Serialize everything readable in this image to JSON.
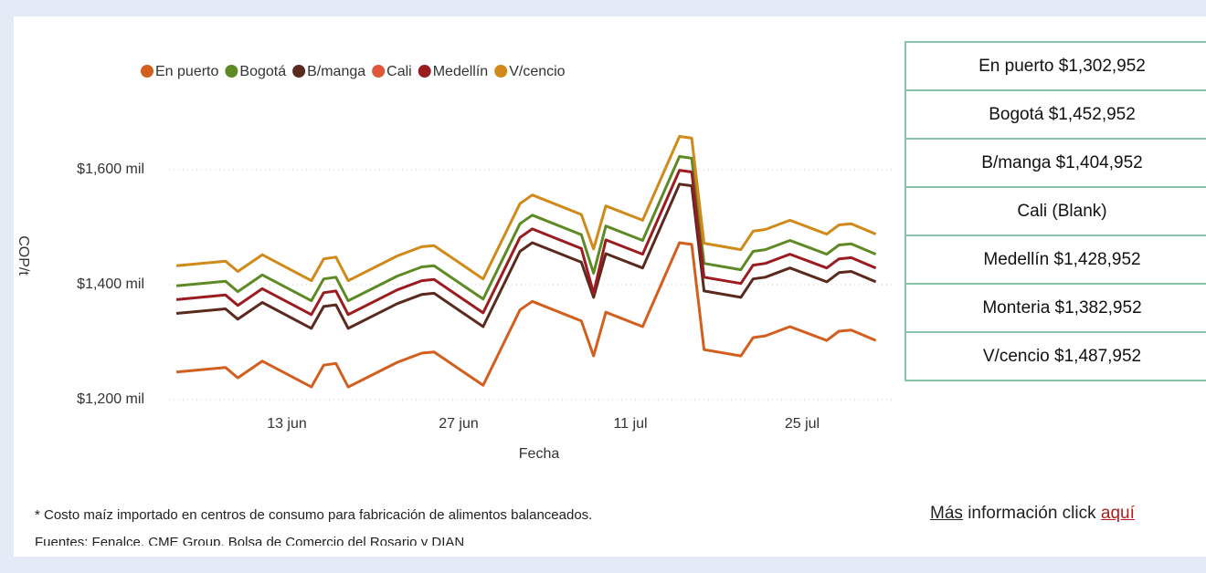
{
  "chart_data": {
    "type": "line",
    "x_label": "Fecha",
    "y_label": "COP/t",
    "x": [
      4,
      8,
      9,
      11,
      15,
      16,
      17,
      18,
      22,
      24,
      25,
      29,
      32,
      33,
      37,
      38,
      39,
      42,
      45,
      46,
      47,
      50,
      51,
      52,
      54,
      57,
      58,
      59,
      61
    ],
    "xlim": [
      3,
      62
    ],
    "xticks": [
      {
        "value": 13,
        "label": "13 jun"
      },
      {
        "value": 27,
        "label": "27 jun"
      },
      {
        "value": 41,
        "label": "11 jul"
      },
      {
        "value": 55,
        "label": "25 jul"
      }
    ],
    "ylim": [
      1200,
      1680
    ],
    "yticks": [
      {
        "value": 1200,
        "label": "$1,200 mil"
      },
      {
        "value": 1400,
        "label": "$1,400 mil"
      },
      {
        "value": 1600,
        "label": "$1,600 mil"
      }
    ],
    "grid": true,
    "series": [
      {
        "name": "En puerto",
        "color": "#d35f1f",
        "values": [
          1248,
          1256,
          1238,
          1267,
          1222,
          1260,
          1263,
          1222,
          1265,
          1281,
          1283,
          1225,
          1356,
          1371,
          1337,
          1276,
          1352,
          1327,
          1473,
          1470,
          1287,
          1276,
          1308,
          1311,
          1327,
          1303,
          1319,
          1321,
          1303
        ]
      },
      {
        "name": "Bogotá",
        "color": "#5e8a26",
        "values": [
          1398,
          1406,
          1388,
          1417,
          1372,
          1410,
          1413,
          1372,
          1415,
          1431,
          1433,
          1375,
          1506,
          1521,
          1487,
          1420,
          1502,
          1477,
          1623,
          1620,
          1437,
          1426,
          1458,
          1461,
          1477,
          1453,
          1469,
          1471,
          1453
        ]
      },
      {
        "name": "B/manga",
        "color": "#5b2a1f",
        "values": [
          1350,
          1358,
          1340,
          1369,
          1324,
          1362,
          1365,
          1324,
          1367,
          1383,
          1385,
          1327,
          1458,
          1473,
          1439,
          1378,
          1454,
          1429,
          1575,
          1572,
          1389,
          1378,
          1410,
          1413,
          1429,
          1405,
          1421,
          1423,
          1405
        ]
      },
      {
        "name": "Cali",
        "color": "#e0563a",
        "values": [
          null,
          null,
          null,
          null,
          null,
          null,
          null,
          null,
          null,
          null,
          null,
          null,
          null,
          null,
          null,
          null,
          null,
          null,
          null,
          null,
          null,
          null,
          null,
          null,
          null,
          null,
          null,
          null,
          null
        ]
      },
      {
        "name": "Medellín",
        "color": "#9b1c20",
        "values": [
          1374,
          1382,
          1364,
          1393,
          1348,
          1386,
          1389,
          1348,
          1391,
          1407,
          1409,
          1351,
          1482,
          1497,
          1463,
          1385,
          1478,
          1453,
          1599,
          1596,
          1413,
          1402,
          1434,
          1437,
          1453,
          1429,
          1445,
          1447,
          1429
        ]
      },
      {
        "name": "V/cencio",
        "color": "#d1891a",
        "values": [
          1433,
          1441,
          1423,
          1452,
          1407,
          1445,
          1448,
          1407,
          1450,
          1466,
          1468,
          1410,
          1541,
          1556,
          1522,
          1462,
          1537,
          1512,
          1658,
          1655,
          1472,
          1461,
          1493,
          1496,
          1512,
          1488,
          1504,
          1506,
          1488
        ]
      }
    ]
  },
  "table": {
    "rows": [
      "En puerto $1,302,952",
      "Bogotá $1,452,952",
      "B/manga $1,404,952",
      "Cali (Blank)",
      "Medellín $1,428,952",
      "Monteria $1,382,952",
      "V/cencio $1,487,952"
    ]
  },
  "footnotes": [
    "* Costo maíz importado en centros de consumo para fabricación de alimentos balanceados.",
    "Fuentes: Fenalce, CME Group, Bolsa de Comercio del Rosario y DIAN"
  ],
  "link": {
    "parts": [
      "Más",
      "información click",
      "aquí"
    ]
  }
}
